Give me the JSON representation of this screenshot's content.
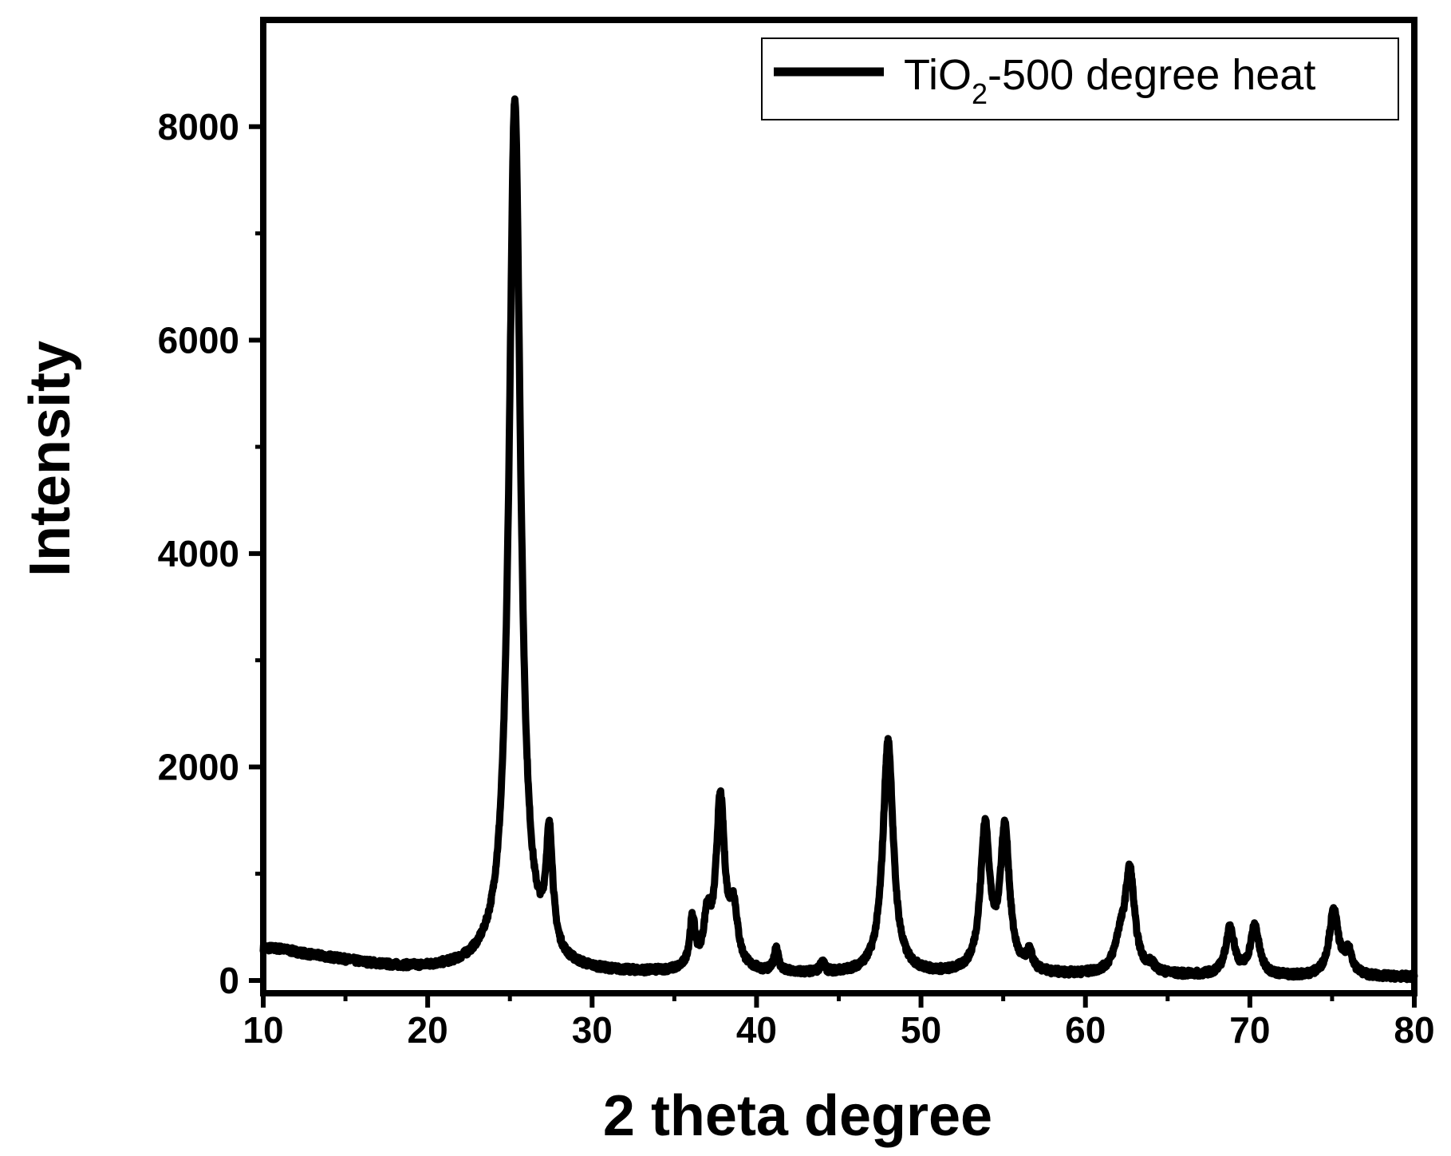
{
  "chart_data": {
    "type": "line",
    "xlabel": "2 theta degree",
    "ylabel": "Intensity",
    "xlim": [
      10,
      80
    ],
    "ylim": [
      -120,
      9000
    ],
    "x_ticks": [
      10,
      20,
      30,
      40,
      50,
      60,
      70,
      80
    ],
    "y_ticks": [
      0,
      2000,
      4000,
      6000,
      8000
    ],
    "grid": false,
    "legend_position": "top-right",
    "series": [
      {
        "name": "TiO2-500 degree heat",
        "legend_main": "TiO",
        "legend_sub": "2",
        "legend_suffix": "-500 degree heat",
        "color": "#000000",
        "baseline": [
          [
            10,
            300
          ],
          [
            11,
            290
          ],
          [
            12,
            260
          ],
          [
            13,
            230
          ],
          [
            14,
            210
          ],
          [
            15,
            185
          ],
          [
            16,
            160
          ],
          [
            17,
            140
          ],
          [
            18,
            120
          ],
          [
            19,
            110
          ],
          [
            20,
            100
          ],
          [
            22,
            95
          ],
          [
            24,
            110
          ],
          [
            26,
            90
          ],
          [
            28,
            80
          ],
          [
            30,
            65
          ],
          [
            32,
            60
          ],
          [
            35,
            60
          ],
          [
            38,
            60
          ],
          [
            40,
            55
          ],
          [
            45,
            50
          ],
          [
            50,
            45
          ],
          [
            55,
            45
          ],
          [
            60,
            45
          ],
          [
            65,
            40
          ],
          [
            70,
            35
          ],
          [
            75,
            30
          ],
          [
            80,
            30
          ]
        ],
        "peaks": [
          [
            25.3,
            8150,
            0.42
          ],
          [
            27.4,
            1080,
            0.25
          ],
          [
            36.1,
            450,
            0.2
          ],
          [
            37.0,
            420,
            0.25
          ],
          [
            37.8,
            1580,
            0.32
          ],
          [
            38.6,
            520,
            0.3
          ],
          [
            41.2,
            230,
            0.15
          ],
          [
            44.0,
            100,
            0.15
          ],
          [
            48.0,
            2180,
            0.38
          ],
          [
            53.9,
            1340,
            0.34
          ],
          [
            55.1,
            1320,
            0.34
          ],
          [
            56.6,
            160,
            0.22
          ],
          [
            62.1,
            250,
            0.4
          ],
          [
            62.7,
            940,
            0.35
          ],
          [
            64.0,
            60,
            0.3
          ],
          [
            68.8,
            440,
            0.32
          ],
          [
            70.3,
            460,
            0.32
          ],
          [
            75.1,
            610,
            0.34
          ],
          [
            76.0,
            200,
            0.3
          ]
        ]
      }
    ]
  }
}
